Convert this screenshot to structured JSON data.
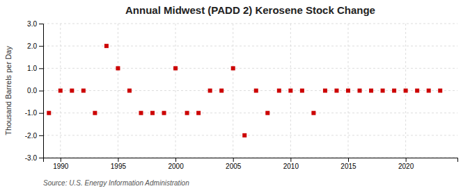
{
  "chart_data": {
    "type": "scatter",
    "title": "Annual Midwest (PADD 2) Kerosene Stock Change",
    "ylabel": "Thousand Barrels per Day",
    "source": "Source: U.S. Energy Information Administration",
    "x": [
      1989,
      1990,
      1991,
      1992,
      1993,
      1994,
      1995,
      1996,
      1997,
      1998,
      1999,
      2000,
      2001,
      2002,
      2003,
      2004,
      2005,
      2006,
      2007,
      2008,
      2009,
      2010,
      2011,
      2012,
      2013,
      2014,
      2015,
      2016,
      2017,
      2018,
      2019,
      2020,
      2021,
      2022,
      2023
    ],
    "values": [
      -1.0,
      0.0,
      0.0,
      0.0,
      -1.0,
      2.0,
      1.0,
      0.0,
      -1.0,
      -1.0,
      -1.0,
      1.0,
      -1.0,
      -1.0,
      0.0,
      0.0,
      1.0,
      -2.0,
      0.0,
      -1.0,
      0.0,
      0.0,
      0.0,
      -1.0,
      0.0,
      0.0,
      0.0,
      0.0,
      0.0,
      0.0,
      0.0,
      0.0,
      0.0,
      0.0,
      0.0
    ],
    "color": "#cc0000",
    "marker": "square",
    "xlim": [
      1988.5,
      2024.5
    ],
    "xticks": [
      1990,
      1995,
      2000,
      2005,
      2010,
      2015,
      2020
    ],
    "ylim": [
      -3.0,
      3.0
    ],
    "yticks": [
      {
        "value": -3.0,
        "label": "-3.0"
      },
      {
        "value": -2.0,
        "label": "-2.0"
      },
      {
        "value": -1.0,
        "label": "-1.0"
      },
      {
        "value": 0.0,
        "label": "0.0"
      },
      {
        "value": 1.0,
        "label": "1.0"
      },
      {
        "value": 2.0,
        "label": "2.0"
      },
      {
        "value": 3.0,
        "label": "3.0"
      }
    ],
    "grid": true
  }
}
